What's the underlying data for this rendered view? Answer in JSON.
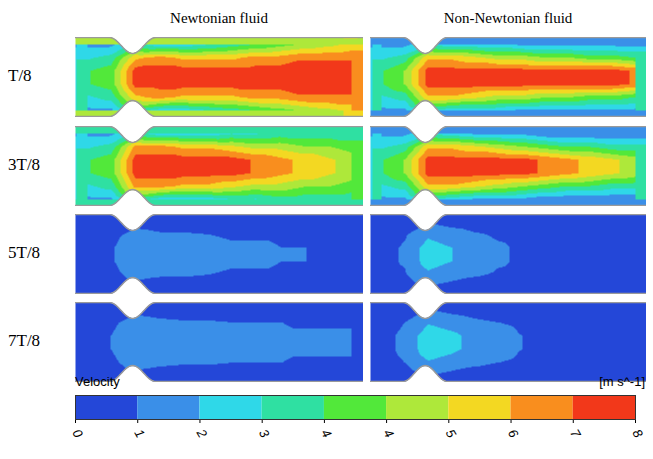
{
  "chart_data": {
    "type": "heatmap",
    "column_titles": [
      "Newtonian fluid",
      "Non-Newtonian fluid"
    ],
    "row_labels": [
      "T/8",
      "3T/8",
      "5T/8",
      "7T/8"
    ],
    "cells": [
      [
        [
          [
            1.5,
            1.5,
            3,
            2,
            2,
            2.5,
            3,
            3.5,
            4,
            4.5,
            5,
            5.5
          ],
          [
            2.5,
            3,
            6,
            6.5,
            6,
            6,
            6,
            6.5,
            6.5,
            7,
            7,
            7
          ],
          [
            3.5,
            4,
            7.5,
            7.5,
            7.5,
            7.5,
            7.5,
            7.5,
            7.5,
            7.5,
            7.5,
            7.5
          ],
          [
            3.5,
            4,
            7.5,
            7.5,
            7.5,
            7.5,
            7.5,
            7.5,
            7.5,
            7.5,
            7.5,
            7.5
          ],
          [
            2.5,
            3,
            6,
            6.5,
            6,
            6,
            6,
            6.5,
            6.5,
            7,
            7,
            7
          ],
          [
            1.5,
            1.5,
            3,
            2,
            2,
            2.5,
            3,
            3.5,
            4,
            4.5,
            5,
            5.5
          ]
        ],
        [
          [
            1.5,
            1.5,
            2.5,
            2,
            2,
            2,
            1.5,
            1.5,
            1.5,
            1.5,
            1.5,
            1.5
          ],
          [
            2.5,
            3,
            6,
            6,
            5.5,
            5,
            5,
            4.5,
            4.5,
            4,
            4,
            3.5
          ],
          [
            3.5,
            4.5,
            7.5,
            7.5,
            7.5,
            7.5,
            7.5,
            7.5,
            7.5,
            7.5,
            7.5,
            7
          ],
          [
            3.5,
            4.5,
            7.5,
            7.5,
            7.5,
            7.5,
            7.5,
            7.5,
            7.5,
            7.5,
            7.5,
            7
          ],
          [
            2.5,
            3,
            6,
            6,
            5.5,
            5,
            5,
            4.5,
            4.5,
            4,
            4,
            3.5
          ],
          [
            1.5,
            1.5,
            2.5,
            2,
            2,
            2,
            1.5,
            1.5,
            1.5,
            1.5,
            1.5,
            1.5
          ]
        ]
      ],
      [
        [
          [
            1.5,
            1.5,
            3,
            2,
            2,
            2,
            2.5,
            2.5,
            3,
            3,
            3,
            3
          ],
          [
            2.5,
            3,
            6.5,
            6.5,
            6,
            6,
            5.5,
            5,
            5,
            4.5,
            4.5,
            4
          ],
          [
            3.5,
            4,
            7.5,
            7.5,
            7.5,
            7.5,
            7.5,
            7,
            6.5,
            6,
            5.5,
            5
          ],
          [
            3.5,
            4,
            7.5,
            7.5,
            7.5,
            7.5,
            7.5,
            7,
            6.5,
            6,
            5.5,
            5
          ],
          [
            2.5,
            3,
            6.5,
            6.5,
            6,
            6,
            5.5,
            5,
            5,
            4.5,
            4.5,
            4
          ],
          [
            1.5,
            1.5,
            3,
            2,
            2,
            2,
            2.5,
            2.5,
            3,
            3,
            3,
            3
          ]
        ],
        [
          [
            1.5,
            1.5,
            2.5,
            2,
            1.5,
            1.5,
            1.5,
            1,
            1,
            1,
            1,
            1
          ],
          [
            2.5,
            3,
            6,
            6,
            5.5,
            5,
            4.5,
            4,
            3.5,
            3.5,
            3,
            3
          ],
          [
            3.5,
            4.5,
            7.5,
            7.5,
            7.5,
            7.5,
            7.5,
            7,
            6.5,
            6,
            5.5,
            5
          ],
          [
            3.5,
            4.5,
            7.5,
            7.5,
            7.5,
            7.5,
            7.5,
            7,
            6.5,
            6,
            5.5,
            5
          ],
          [
            2.5,
            3,
            6,
            6,
            5.5,
            5,
            4.5,
            4,
            3.5,
            3.5,
            3,
            3
          ],
          [
            1.5,
            1.5,
            2.5,
            2,
            1.5,
            1.5,
            1.5,
            1,
            1,
            1,
            1,
            1
          ]
        ]
      ],
      [
        [
          [
            0.3,
            0.3,
            0.5,
            0.4,
            0.3,
            0.3,
            0.3,
            0.3,
            0.3,
            0.4,
            0.4,
            0.4
          ],
          [
            0.5,
            0.6,
            1.2,
            1,
            1,
            0.9,
            0.8,
            0.8,
            0.8,
            0.7,
            0.7,
            0.7
          ],
          [
            0.5,
            0.8,
            1.5,
            1.3,
            1.2,
            1.1,
            1,
            1,
            0.9,
            0.9,
            0.8,
            0.8
          ],
          [
            0.5,
            0.8,
            1.5,
            1.3,
            1.2,
            1.1,
            1,
            1,
            0.9,
            0.9,
            0.8,
            0.8
          ],
          [
            0.5,
            0.6,
            1.2,
            1,
            1,
            0.9,
            0.8,
            0.8,
            0.8,
            0.7,
            0.7,
            0.7
          ],
          [
            0.3,
            0.3,
            0.5,
            0.4,
            0.3,
            0.3,
            0.3,
            0.3,
            0.3,
            0.4,
            0.4,
            0.4
          ]
        ],
        [
          [
            0.3,
            0.4,
            0.8,
            0.5,
            0.4,
            0.3,
            0.3,
            0.3,
            0.3,
            0.3,
            0.3,
            0.3
          ],
          [
            0.5,
            0.8,
            1.6,
            1.3,
            1,
            0.8,
            0.7,
            0.6,
            0.6,
            0.6,
            0.6,
            0.6
          ],
          [
            0.6,
            1,
            2.2,
            1.8,
            1.3,
            1,
            0.8,
            0.7,
            0.6,
            0.6,
            0.6,
            0.6
          ],
          [
            0.6,
            1,
            2.2,
            1.8,
            1.3,
            1,
            0.8,
            0.7,
            0.6,
            0.6,
            0.6,
            0.6
          ],
          [
            0.5,
            0.8,
            1.6,
            1.3,
            1,
            0.8,
            0.7,
            0.6,
            0.6,
            0.6,
            0.6,
            0.6
          ],
          [
            0.3,
            0.4,
            0.8,
            0.5,
            0.4,
            0.3,
            0.3,
            0.3,
            0.3,
            0.3,
            0.3,
            0.3
          ]
        ]
      ],
      [
        [
          [
            0.3,
            0.3,
            0.6,
            0.4,
            0.3,
            0.3,
            0.3,
            0.3,
            0.4,
            0.4,
            0.4,
            0.4
          ],
          [
            0.5,
            0.7,
            1.3,
            1.1,
            1,
            1,
            0.9,
            0.9,
            0.9,
            0.8,
            0.8,
            0.8
          ],
          [
            0.6,
            0.9,
            1.5,
            1.4,
            1.3,
            1.2,
            1.1,
            1.1,
            1,
            1,
            1,
            1
          ],
          [
            0.6,
            0.9,
            1.5,
            1.4,
            1.3,
            1.2,
            1.1,
            1.1,
            1,
            1,
            1,
            1
          ],
          [
            0.5,
            0.7,
            1.3,
            1.1,
            1,
            1,
            0.9,
            0.9,
            0.9,
            0.8,
            0.8,
            0.8
          ],
          [
            0.3,
            0.3,
            0.6,
            0.4,
            0.3,
            0.3,
            0.3,
            0.3,
            0.4,
            0.4,
            0.4,
            0.4
          ]
        ],
        [
          [
            0.3,
            0.4,
            0.9,
            0.6,
            0.4,
            0.3,
            0.3,
            0.3,
            0.3,
            0.3,
            0.3,
            0.3
          ],
          [
            0.5,
            0.9,
            1.7,
            1.4,
            1.1,
            0.9,
            0.8,
            0.7,
            0.7,
            0.7,
            0.7,
            0.7
          ],
          [
            0.6,
            1.1,
            2.3,
            2,
            1.5,
            1.1,
            0.9,
            0.8,
            0.7,
            0.7,
            0.7,
            0.7
          ],
          [
            0.6,
            1.1,
            2.3,
            2,
            1.5,
            1.1,
            0.9,
            0.8,
            0.7,
            0.7,
            0.7,
            0.7
          ],
          [
            0.5,
            0.9,
            1.7,
            1.4,
            1.1,
            0.9,
            0.8,
            0.7,
            0.7,
            0.7,
            0.7,
            0.7
          ],
          [
            0.3,
            0.4,
            0.9,
            0.6,
            0.4,
            0.3,
            0.3,
            0.3,
            0.3,
            0.3,
            0.3,
            0.3
          ]
        ]
      ]
    ],
    "color_bar": {
      "title": "Velocity",
      "unit": "[m s^-1]",
      "range": [
        0,
        8
      ],
      "ticks": [
        0,
        {
          "value": 0.889,
          "label": "1"
        },
        {
          "value": 1.778,
          "label": "2"
        },
        {
          "value": 2.667,
          "label": "3"
        },
        {
          "value": 3.556,
          "label": "4"
        },
        {
          "value": 4.444,
          "label": "4"
        },
        {
          "value": 5.333,
          "label": "5"
        },
        {
          "value": 6.222,
          "label": "6"
        },
        {
          "value": 7.111,
          "label": "7"
        },
        8
      ],
      "colors": [
        "#2447d8",
        "#3a8fe8",
        "#2fd8e8",
        "#2fe0a2",
        "#52e83a",
        "#aee83a",
        "#f3d822",
        "#f98e1e",
        "#f2381a"
      ]
    }
  }
}
